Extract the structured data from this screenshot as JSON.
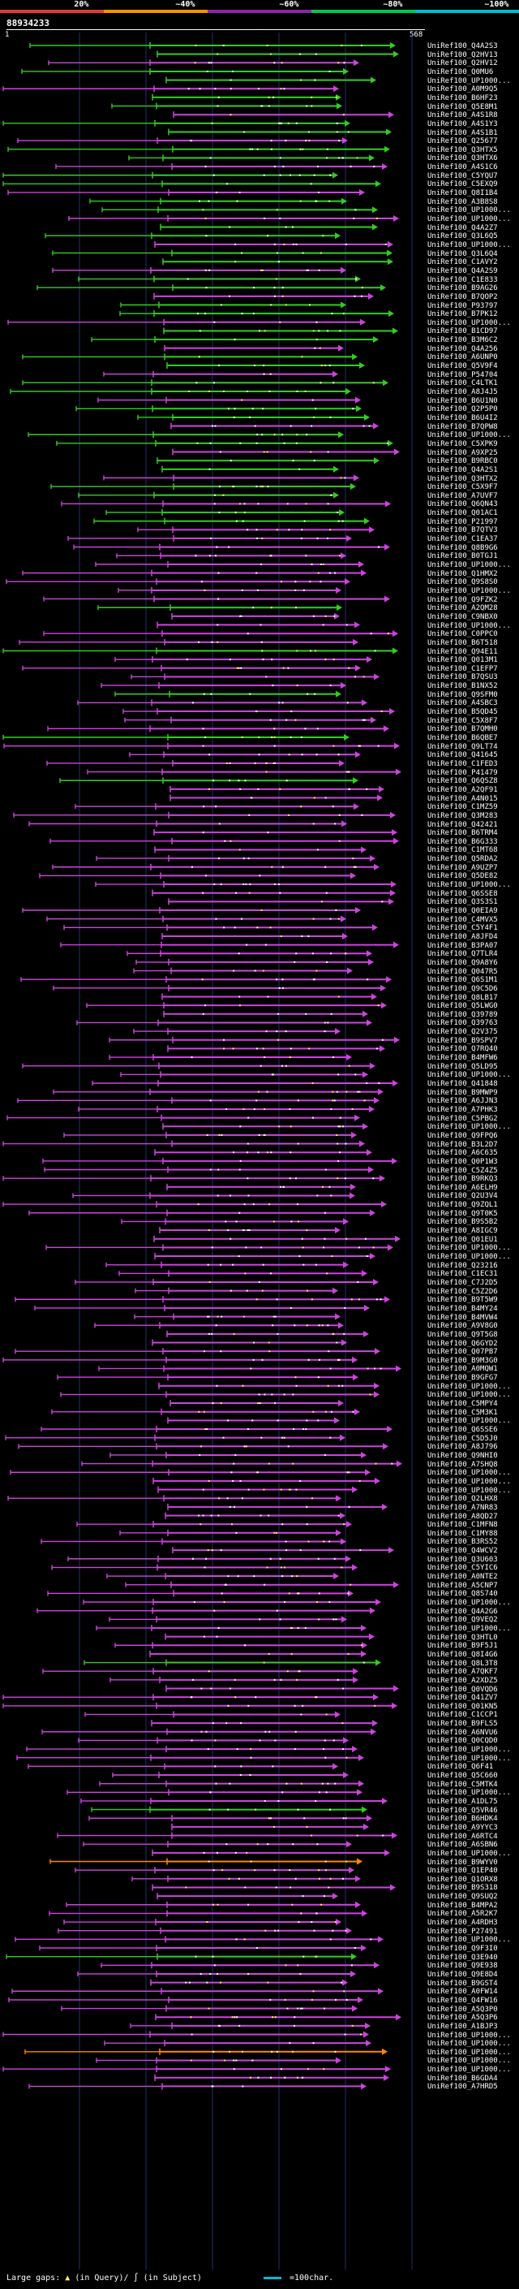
{
  "legend": {
    "labels": [
      "20%",
      "~40%",
      "~60%",
      "~80%",
      "~100%"
    ],
    "colors": [
      "#e53935",
      "#ff8f00",
      "#8e24aa",
      "#00c853",
      "#00bcd4"
    ]
  },
  "query_id": "88934233",
  "ruler": {
    "start": "1",
    "end": "568"
  },
  "colors": {
    "magenta": "#cc44dd",
    "green": "#33cc22",
    "orange": "#ff8800",
    "cyan": "#00bcd4",
    "grid": "#24306a",
    "marker": "#ffffff",
    "highlight": "#ffee66"
  },
  "hits": [
    "UniRef100_Q4A2S3",
    "UniRef100_Q2HV13",
    "UniRef100_Q2HV12",
    "UniRef100_Q0MU6",
    "UniRef100_UP1000...",
    "UniRef100_A0M9Q5",
    "UniRef100_B6HF23",
    "UniRef100_Q5E8M1",
    "UniRef100_A4S1R8",
    "UniRef100_A4S1Y3",
    "UniRef100_A4S1B1",
    "UniRef100_Q25677",
    "UniRef100_Q3HTX5",
    "UniRef100_Q3HTX6",
    "UniRef100_A4S1C6",
    "UniRef100_C5YQU7",
    "UniRef100_C5EXQ9",
    "UniRef100_Q8I1B4",
    "UniRef100_A3B8S8",
    "UniRef100_UP1000...",
    "UniRef100_UP1000...",
    "UniRef100_Q4A2Z7",
    "UniRef100_Q3L6Q5",
    "UniRef100_UP1000...",
    "UniRef100_Q3L6Q4",
    "UniRef100_C1AVY2",
    "UniRef100_Q4A2S9",
    "UniRef100_C1E833",
    "UniRef100_B9AG26",
    "UniRef100_B7QOP2",
    "UniRef100_P93797",
    "UniRef100_B7PK12",
    "UniRef100_UP1000...",
    "UniRef100_B1CD97",
    "UniRef100_B3M6C2",
    "UniRef100_Q4A256",
    "UniRef100_A6UNP0",
    "UniRef100_Q5V9F4",
    "UniRef100_P54704",
    "UniRef100_C4LTK1",
    "UniRef100_A8J4J5",
    "UniRef100_B6U1N0",
    "UniRef100_Q2P5P0",
    "UniRef100_B6U4I2",
    "UniRef100_B7QPW8",
    "UniRef100_UP1000...",
    "UniRef100_C5XPK9",
    "UniRef100_A9XP25",
    "UniRef100_B9RBC0",
    "UniRef100_Q4A2S1",
    "UniRef100_Q3HTX2",
    "UniRef100_C5X9F7",
    "UniRef100_A7UVF7",
    "UniRef100_Q6QN43",
    "UniRef100_Q01AC1",
    "UniRef100_P21997",
    "UniRef100_B7QTV3",
    "UniRef100_C1EA37",
    "UniRef100_Q8B9G6",
    "UniRef100_B0TGJ1",
    "UniRef100_UP1000...",
    "UniRef100_Q1HMX2",
    "UniRef100_Q9S8S0",
    "UniRef100_UP1000...",
    "UniRef100_Q9FZK2",
    "UniRef100_A2QM28",
    "UniRef100_C9NBX0",
    "UniRef100_UP1000...",
    "UniRef100_C0PPC0",
    "UniRef100_B6T518",
    "UniRef100_Q94E11",
    "UniRef100_Q013M1",
    "UniRef100_C1EFP7",
    "UniRef100_B7QSU3",
    "UniRef100_B1NX52",
    "UniRef100_Q9SFM0",
    "UniRef100_A4SBC3",
    "UniRef100_B5QD45",
    "UniRef100_C5X8F7",
    "UniRef100_B7QMH0",
    "UniRef100_B6QBE7",
    "UniRef100_Q9LT74",
    "UniRef100_Q41645",
    "UniRef100_C1FED3",
    "UniRef100_P41479",
    "UniRef100_Q6QSZ8",
    "UniRef100_A2QF91",
    "UniRef100_A4N015",
    "UniRef100_C1MZ59",
    "UniRef100_Q3M283",
    "UniRef100_Q42421",
    "UniRef100_B6TRM4",
    "UniRef100_B6G333",
    "UniRef100_C1MT68",
    "UniRef100_Q5RDA2",
    "UniRef100_A9UZP7",
    "UniRef100_Q5DE82",
    "UniRef100_UP1000...",
    "UniRef100_Q6SSE8",
    "UniRef100_Q3S3S1",
    "UniRef100_Q0EIA9",
    "UniRef100_C4MVX5",
    "UniRef100_C5Y4F1",
    "UniRef100_A8JFD4",
    "UniRef100_B3PA07",
    "UniRef100_Q7TLR4",
    "UniRef100_Q9A8Y6",
    "UniRef100_Q047R5",
    "UniRef100_Q6S1M1",
    "UniRef100_Q9C5D6",
    "UniRef100_Q8LB17",
    "UniRef100_Q5LWG0",
    "UniRef100_Q39789",
    "UniRef100_Q39763",
    "UniRef100_Q2V375",
    "UniRef100_B9SPV7",
    "UniRef100_Q7RQ40",
    "UniRef100_B4MFW6",
    "UniRef100_Q5LD95",
    "UniRef100_UP1000...",
    "UniRef100_Q41848",
    "UniRef100_B9MWP9",
    "UniRef100_A6JJN3",
    "UniRef100_A7PHK3",
    "UniRef100_C5PBG2",
    "UniRef100_UP1000...",
    "UniRef100_Q9FPQ6",
    "UniRef100_B3L2D7",
    "UniRef100_A6C635",
    "UniRef100_Q0P1W3",
    "UniRef100_C5Z4Z5",
    "UniRef100_B9RKQ3",
    "UniRef100_A6ELH9",
    "UniRef100_Q2U3V4",
    "UniRef100_Q9ZQL1",
    "UniRef100_Q9T0K5",
    "UniRef100_B9S5B2",
    "UniRef100_A8IGC9",
    "UniRef100_Q01EU1",
    "UniRef100_UP1000...",
    "UniRef100_UP1000...",
    "UniRef100_Q23216",
    "UniRef100_C1EC31",
    "UniRef100_C7J2D5",
    "UniRef100_C5Z2D6",
    "UniRef100_B9T5W9",
    "UniRef100_B4MY24",
    "UniRef100_B4MVW4",
    "UniRef100_A9V8G0",
    "UniRef100_Q9T5G8",
    "UniRef100_Q6GYD2",
    "UniRef100_Q07PB7",
    "UniRef100_B9M3G0",
    "UniRef100_A0MQW1",
    "UniRef100_B9GFG7",
    "UniRef100_UP1000...",
    "UniRef100_UP1000...",
    "UniRef100_C5MPY4",
    "UniRef100_C5M3K1",
    "UniRef100_UP1000...",
    "UniRef100_Q6SSE6",
    "UniRef100_C5D5J0",
    "UniRef100_A8J796",
    "UniRef100_Q9NHI0",
    "UniRef100_A7SHQ8",
    "UniRef100_UP1000...",
    "UniRef100_UP1000...",
    "UniRef100_UP1000...",
    "UniRef100_Q2LHX8",
    "UniRef100_A7NR83",
    "UniRef100_A8QD27",
    "UniRef100_C1MFN8",
    "UniRef100_C1MY88",
    "UniRef100_B3RS52",
    "UniRef100_Q4WCV2",
    "UniRef100_Q3U603",
    "UniRef100_C5YIC6",
    "UniRef100_A0NTE2",
    "UniRef100_A5CNP7",
    "UniRef100_Q8S740",
    "UniRef100_UP1000...",
    "UniRef100_Q4A2G6",
    "UniRef100_Q9VEQ2",
    "UniRef100_UP1000...",
    "UniRef100_Q3HTL0",
    "UniRef100_B9F5J1",
    "UniRef100_Q8I4G6",
    "UniRef100_Q8L3T8",
    "UniRef100_A7QKF7",
    "UniRef100_A2XDZ5",
    "UniRef100_Q0VQD6",
    "UniRef100_Q41ZV7",
    "UniRef100_Q01KN5",
    "UniRef100_C1CCP1",
    "UniRef100_B9FLS5",
    "UniRef100_A6NVU6",
    "UniRef100_Q0CQD0",
    "UniRef100_UP1000...",
    "UniRef100_UP1000...",
    "UniRef100_Q6F41",
    "UniRef100_Q5C660",
    "UniRef100_C5MTK4",
    "UniRef100_UP1000...",
    "UniRef100_A1DL75",
    "UniRef100_Q5VR46",
    "UniRef100_B6HDK4",
    "UniRef100_A9YYC3",
    "UniRef100_A6RTC4",
    "UniRef100_A6SBN6",
    "UniRef100_UP1000...",
    "UniRef100_B9WYV0",
    "UniRef100_Q1EP40",
    "UniRef100_Q1ORX8",
    "UniRef100_B9S318",
    "UniRef100_Q9SUQ2",
    "UniRef100_B4MPA2",
    "UniRef100_A5R2K7",
    "UniRef100_A4RDH3",
    "UniRef100_P27491",
    "UniRef100_UP1000...",
    "UniRef100_Q9F3I0",
    "UniRef100_Q3E940",
    "UniRef100_Q9E938",
    "UniRef100_Q9E8D4",
    "UniRef100_B9GST4",
    "UniRef100_A0FW14",
    "UniRef100_Q4FW16",
    "UniRef100_A5Q3P0",
    "UniRef100_A5Q3P6",
    "UniRef100_A1BJP3",
    "UniRef100_UP1000...",
    "UniRef100_UP1000...",
    "UniRef100_UP1000...",
    "UniRef100_UP1000...",
    "UniRef100_UP1000...",
    "UniRef100_B6GDA4",
    "UniRef100_A7HRD5"
  ],
  "footer": {
    "gaps_label": "Large gaps:",
    "in_query": "(in Query)/",
    "in_subject": "(in Subject)",
    "scale_label": "=100char."
  }
}
